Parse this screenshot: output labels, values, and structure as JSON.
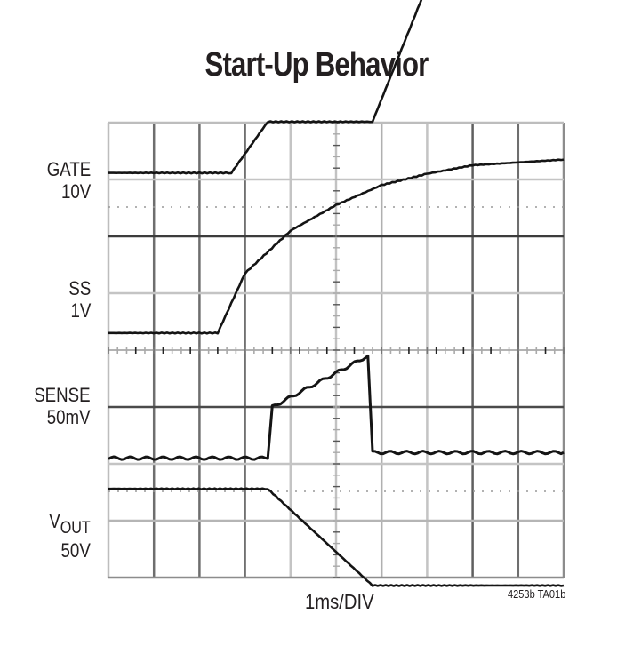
{
  "title": "Start-Up Behavior",
  "channels": [
    {
      "name": "GATE",
      "scale": "10V"
    },
    {
      "name": "SS",
      "scale": "1V"
    },
    {
      "name": "SENSE",
      "scale": "50mV"
    },
    {
      "name": "V",
      "name_sub": "OUT",
      "scale": "50V"
    }
  ],
  "xaxis_label": "1ms/DIV",
  "figure_id": "4253b TA01b",
  "chart_data": {
    "type": "line",
    "title": "Start-Up Behavior",
    "xlabel": "1ms/DIV",
    "time_per_div_ms": 1,
    "grid": {
      "x_divisions": 10,
      "y_divisions": 8,
      "on": true
    },
    "x_ms": [
      0,
      1,
      2,
      2.7,
      3.5,
      4,
      5,
      5.8,
      7,
      8,
      9,
      10
    ],
    "series": [
      {
        "name": "GATE",
        "scale_per_div": "10V",
        "units": "V",
        "x_ms": [
          0,
          2.7,
          3.5,
          5.8,
          7.2,
          10
        ],
        "values": [
          6,
          6,
          15,
          15,
          43,
          43
        ]
      },
      {
        "name": "SS",
        "scale_per_div": "1V",
        "units": "V",
        "x_ms": [
          0,
          2.4,
          3,
          4,
          5,
          6,
          7,
          8,
          10
        ],
        "values": [
          -0.7,
          -0.7,
          0.35,
          1.1,
          1.55,
          1.9,
          2.1,
          2.25,
          2.35
        ]
      },
      {
        "name": "SENSE",
        "scale_per_div": "50mV",
        "units": "mV",
        "x_ms": [
          0,
          3.5,
          3.6,
          5.7,
          5.8,
          10
        ],
        "values": [
          -45,
          -45,
          0,
          45,
          -40,
          -40
        ]
      },
      {
        "name": "VOUT",
        "scale_per_div": "50V",
        "units": "V",
        "x_ms": [
          0,
          3.5,
          5.8,
          10
        ],
        "values": [
          28,
          28,
          -57,
          -57
        ]
      }
    ],
    "legend_position": "left (channel labels)"
  }
}
